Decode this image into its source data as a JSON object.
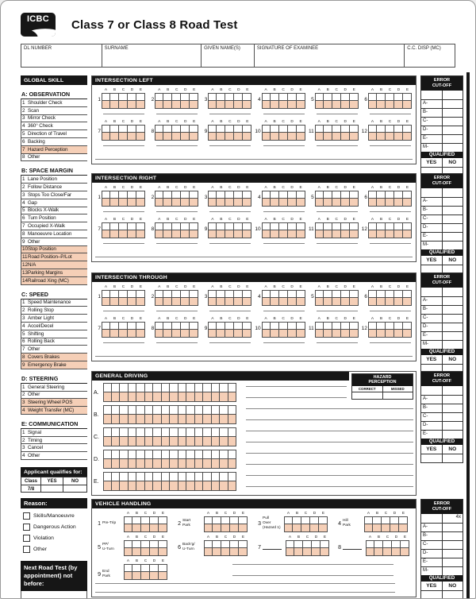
{
  "logo_text": "ICBC",
  "page_title": "Class 7 or Class 8 Road Test",
  "header_fields": [
    {
      "label": "DL NUMBER"
    },
    {
      "label": "SURNAME"
    },
    {
      "label": "GIVEN NAME(S)"
    },
    {
      "label": "SIGNATURE OF EXAMINEE"
    },
    {
      "label": "C.C. DISP (MC)"
    }
  ],
  "colors": {
    "highlight": "#f5cfb7",
    "bar": "#161616"
  },
  "mark_letters": [
    "A",
    "B",
    "C",
    "D",
    "E"
  ],
  "sidebar": {
    "title": "GLOBAL SKILL",
    "sections": [
      {
        "heading": "A: OBSERVATION",
        "items": [
          {
            "n": "1",
            "label": "Shoulder Check",
            "hl": false
          },
          {
            "n": "2",
            "label": "Scan",
            "hl": false
          },
          {
            "n": "3",
            "label": "Mirror Check",
            "hl": false
          },
          {
            "n": "4",
            "label": "360° Check",
            "hl": false
          },
          {
            "n": "5",
            "label": "Direction of Travel",
            "hl": false
          },
          {
            "n": "6",
            "label": "Backing",
            "hl": false
          },
          {
            "n": "7",
            "label": "Hazard Perception",
            "hl": true
          },
          {
            "n": "8",
            "label": "Other",
            "hl": false
          }
        ]
      },
      {
        "heading": "B: SPACE MARGIN",
        "items": [
          {
            "n": "1",
            "label": "Lane Position",
            "hl": false
          },
          {
            "n": "2",
            "label": "Follow Distance",
            "hl": false
          },
          {
            "n": "3",
            "label": "Stops Too Close/Far",
            "hl": false
          },
          {
            "n": "4",
            "label": "Gap",
            "hl": false
          },
          {
            "n": "5",
            "label": "Blocks X-Walk",
            "hl": false
          },
          {
            "n": "6",
            "label": "Turn Position",
            "hl": false
          },
          {
            "n": "7",
            "label": "Occupied X-Walk",
            "hl": false
          },
          {
            "n": "8",
            "label": "Manoeuvre Location",
            "hl": false
          },
          {
            "n": "9",
            "label": "Other",
            "hl": false
          },
          {
            "n": "10",
            "label": "Stop Position",
            "hl": true
          },
          {
            "n": "11",
            "label": "Road Position–P/Lot",
            "hl": true
          },
          {
            "n": "12",
            "label": "N/A",
            "hl": true
          },
          {
            "n": "13",
            "label": "Parking Margins",
            "hl": true
          },
          {
            "n": "14",
            "label": "Railroad Xing (MC)",
            "hl": true
          }
        ]
      },
      {
        "heading": "C: SPEED",
        "items": [
          {
            "n": "1",
            "label": "Speed Maintenance",
            "hl": false
          },
          {
            "n": "2",
            "label": "Rolling Stop",
            "hl": false
          },
          {
            "n": "3",
            "label": "Amber Light",
            "hl": false
          },
          {
            "n": "4",
            "label": "Accel/Decel",
            "hl": false
          },
          {
            "n": "5",
            "label": "Shifting",
            "hl": false
          },
          {
            "n": "6",
            "label": "Rolling Back",
            "hl": false
          },
          {
            "n": "7",
            "label": "Other",
            "hl": false
          },
          {
            "n": "8",
            "label": "Covers Brakes",
            "hl": true
          },
          {
            "n": "9",
            "label": "Emergency Brake",
            "hl": true
          }
        ]
      },
      {
        "heading": "D: STEERING",
        "items": [
          {
            "n": "1",
            "label": "General Steering",
            "hl": false
          },
          {
            "n": "2",
            "label": "Other",
            "hl": false
          },
          {
            "n": "3",
            "label": "Steering Wheel POS",
            "hl": true
          },
          {
            "n": "4",
            "label": "Weight Transfer (MC)",
            "hl": true
          }
        ]
      },
      {
        "heading": "E: COMMUNICATION",
        "items": [
          {
            "n": "1",
            "label": "Signal",
            "hl": false
          },
          {
            "n": "2",
            "label": "Timing",
            "hl": false
          },
          {
            "n": "3",
            "label": "Cancel",
            "hl": false
          },
          {
            "n": "4",
            "label": "Other",
            "hl": false
          }
        ]
      }
    ],
    "qualifies": {
      "title": "Applicant qualifies for:",
      "columns": [
        "Class",
        "YES",
        "NO"
      ],
      "class_value": "7/8"
    },
    "reason": {
      "title": "Reason:",
      "options": [
        "Skills/Manoeuvre",
        "Dangerous Action",
        "Violation",
        "Other"
      ]
    },
    "next_test": {
      "title": "Next Road Test (by appointment) not before:"
    }
  },
  "main_sections": [
    {
      "id": "intersection-left",
      "title": "INTERSECTION LEFT",
      "row1": [
        "1",
        "2",
        "3",
        "4",
        "5",
        "6"
      ],
      "row2": [
        "7",
        "8",
        "9",
        "10",
        "11",
        "12"
      ]
    },
    {
      "id": "intersection-right",
      "title": "INTERSECTION RIGHT",
      "row1": [
        "1",
        "2",
        "3",
        "4",
        "5",
        "6"
      ],
      "row2": [
        "7",
        "8",
        "9",
        "10",
        "11",
        "12"
      ]
    },
    {
      "id": "intersection-through",
      "title": "INTERSECTION THROUGH",
      "row1": [
        "1",
        "2",
        "3",
        "4",
        "5",
        "6"
      ],
      "row2": [
        "7",
        "8",
        "9",
        "10",
        "11",
        "12"
      ]
    }
  ],
  "general_driving": {
    "title": "GENERAL DRIVING",
    "row_labels": [
      "A.",
      "B.",
      "C.",
      "D.",
      "E."
    ],
    "columns": 16,
    "hazard": {
      "title_line1": "HAZARD",
      "title_line2": "PERCEPTION",
      "columns": [
        "CORRECT",
        "MISSED"
      ]
    }
  },
  "vehicle_handling": {
    "title": "VEHICLE HANDLING",
    "row1": [
      {
        "n": "1",
        "label": "Pre-Trip"
      },
      {
        "n": "2",
        "label": "Start\nPark"
      },
      {
        "n": "3",
        "label": "Pull\nOver\n(Hazard 1)"
      },
      {
        "n": "4",
        "label": "Hill\nPark"
      }
    ],
    "row2": [
      {
        "n": "5",
        "label": "PP/\nU-Turn"
      },
      {
        "n": "6",
        "label": "Back'g/\nU-Turn"
      },
      {
        "n": "7",
        "label": ""
      },
      {
        "n": "8",
        "label": ""
      }
    ],
    "row3": [
      {
        "n": "9",
        "label": "End\nPark"
      }
    ]
  },
  "error_cutoff": {
    "title_line1": "ERROR",
    "title_line2": "CUT-OFF",
    "intersection_rows": [
      "A-",
      "B-",
      "C-",
      "D-",
      "E-",
      "M-"
    ],
    "general_rows": [
      "A-",
      "B-",
      "C-",
      "D-",
      "E-"
    ],
    "vehicle_rows": [
      "A-",
      "B-",
      "C-",
      "D-",
      "E-",
      "M-"
    ],
    "vehicle_top_right": "4x",
    "qualified": "QUALIFIED",
    "yes": "YES",
    "no": "NO"
  }
}
